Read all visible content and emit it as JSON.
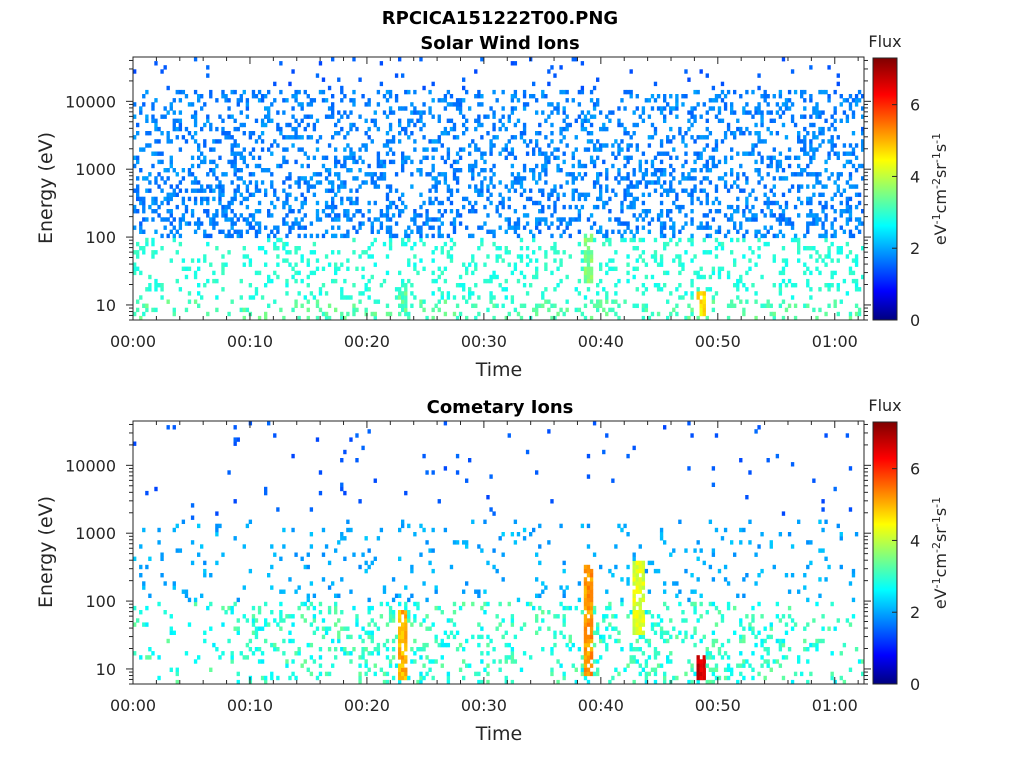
{
  "chart_data": {
    "figure_title": "RPCICA151222T00.PNG",
    "type": "heatmap",
    "panels": [
      {
        "title": "Solar Wind Ions",
        "xlabel": "Time",
        "ylabel": "Energy (eV)",
        "xtick_labels": [
          "00:00",
          "00:10",
          "00:20",
          "00:30",
          "00:40",
          "00:50",
          "01:00"
        ],
        "xtick_minutes": [
          0,
          10,
          20,
          30,
          40,
          50,
          60
        ],
        "xlim_minutes": [
          0,
          62.5
        ],
        "ytick_labels": [
          "10",
          "100",
          "1000",
          "10000"
        ],
        "ytick_values": [
          10,
          100,
          1000,
          10000
        ],
        "ylim_ev": [
          6,
          45000
        ],
        "yscale": "log",
        "colorbar": {
          "title": "Flux",
          "label": "eV-1cm-2sr-1s-1",
          "ticks": [
            "0",
            "2",
            "4",
            "6"
          ],
          "range": [
            0,
            7.3
          ]
        },
        "pattern": {
          "seed": 11,
          "points": [
            [
              0.8,
              3.2
            ],
            [
              5,
              3.4
            ],
            [
              10,
              3.1
            ],
            [
              15,
              3.3
            ],
            [
              20,
              3.5
            ],
            [
              25,
              3.2
            ],
            [
              30,
              3.4
            ],
            [
              35,
              3.1
            ],
            [
              40,
              3.3
            ],
            [
              45,
              3.5
            ],
            [
              50,
              3.2
            ],
            [
              55,
              3.4
            ],
            [
              60,
              3.1
            ]
          ],
          "hot_spots": [
            {
              "t": 23,
              "e_lo": 7,
              "e_hi": 20,
              "flux": 3.6
            },
            {
              "t": 39,
              "e_lo": 20,
              "e_hi": 120,
              "flux": 3.9
            },
            {
              "t": 48.5,
              "e_lo": 7,
              "e_hi": 15,
              "flux": 5.0
            }
          ]
        }
      },
      {
        "title": "Cometary Ions",
        "xlabel": "Time",
        "ylabel": "Energy (eV)",
        "xtick_labels": [
          "00:00",
          "00:10",
          "00:20",
          "00:30",
          "00:40",
          "00:50",
          "01:00"
        ],
        "xtick_minutes": [
          0,
          10,
          20,
          30,
          40,
          50,
          60
        ],
        "xlim_minutes": [
          0,
          62.5
        ],
        "ytick_labels": [
          "10",
          "100",
          "1000",
          "10000"
        ],
        "ytick_values": [
          10,
          100,
          1000,
          10000
        ],
        "ylim_ev": [
          6,
          45000
        ],
        "yscale": "log",
        "colorbar": {
          "title": "Flux",
          "label": "eV-1cm-2sr-1s-1",
          "ticks": [
            "0",
            "2",
            "4",
            "6"
          ],
          "range": [
            0,
            7.3
          ]
        },
        "pattern": {
          "seed": 29,
          "points": [
            [
              1,
              2.6
            ],
            [
              7,
              3.2
            ],
            [
              10,
              4.8
            ],
            [
              13.5,
              5.2
            ],
            [
              23,
              5.8
            ],
            [
              26.2,
              4.5
            ],
            [
              29.8,
              5.0
            ],
            [
              33,
              3.6
            ],
            [
              39,
              6.2
            ],
            [
              43.2,
              5.5
            ],
            [
              48.5,
              7.0
            ],
            [
              55.5,
              4.8
            ],
            [
              62,
              3.4
            ]
          ],
          "hot_spots": [
            {
              "t": 23,
              "e_lo": 7,
              "e_hi": 70,
              "flux": 5.4
            },
            {
              "t": 39,
              "e_lo": 8,
              "e_hi": 350,
              "flux": 5.6
            },
            {
              "t": 43.2,
              "e_lo": 30,
              "e_hi": 400,
              "flux": 4.6
            },
            {
              "t": 48.5,
              "e_lo": 7,
              "e_hi": 15,
              "flux": 7.0
            }
          ]
        }
      }
    ]
  }
}
